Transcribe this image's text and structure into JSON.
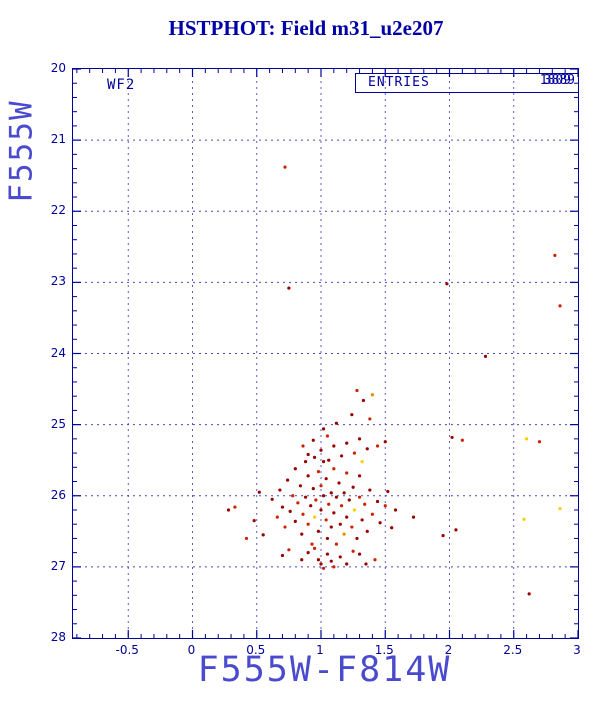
{
  "title": "HSTPHOT: Field m31_u2e207",
  "plot": {
    "detector_label": "WF2",
    "entries": {
      "label": "ENTRIES",
      "value_primary": "3889",
      "value_overlay": "1809"
    },
    "colors": {
      "frame": "#00009b",
      "grid": "#2a2ab8",
      "title": "#0000a8",
      "axis_label": "#4a4ace",
      "tick_label": "#00009b"
    }
  },
  "chart_data": {
    "type": "scatter",
    "title": "HSTPHOT: Field m31_u2e207",
    "xlabel": "F555W-F814W",
    "ylabel": "F555W",
    "xlim": [
      -0.93,
      3.0
    ],
    "ylim": [
      28,
      20
    ],
    "x_ticks": [
      -0.5,
      0,
      0.5,
      1,
      1.5,
      2,
      2.5,
      3
    ],
    "y_ticks": [
      20,
      21,
      22,
      23,
      24,
      25,
      26,
      27,
      28
    ],
    "x_minor_step": 0.1,
    "y_minor_step": 0.2,
    "grid": true,
    "legend": "none",
    "point_palette": [
      "#990000",
      "#cc2200",
      "#ee8800",
      "#ffcc00"
    ],
    "points": [
      [
        0.72,
        21.38,
        1
      ],
      [
        2.82,
        22.62,
        1
      ],
      [
        0.75,
        23.08,
        0
      ],
      [
        1.98,
        23.02,
        0
      ],
      [
        2.86,
        23.33,
        1
      ],
      [
        2.28,
        24.04,
        0
      ],
      [
        2.02,
        25.18,
        0
      ],
      [
        2.1,
        25.22,
        1
      ],
      [
        2.6,
        25.2,
        3
      ],
      [
        2.7,
        25.24,
        1
      ],
      [
        2.86,
        26.18,
        3
      ],
      [
        2.58,
        26.33,
        3
      ],
      [
        2.62,
        27.38,
        0
      ],
      [
        2.05,
        26.48,
        0
      ],
      [
        1.95,
        26.56,
        0
      ],
      [
        1.72,
        26.3,
        0
      ],
      [
        0.28,
        26.2,
        0
      ],
      [
        0.33,
        26.16,
        1
      ],
      [
        0.48,
        26.35,
        0
      ],
      [
        0.52,
        25.95,
        0
      ],
      [
        0.55,
        26.55,
        0
      ],
      [
        0.42,
        26.6,
        1
      ],
      [
        1.28,
        24.52,
        1
      ],
      [
        1.33,
        24.66,
        0
      ],
      [
        1.24,
        24.86,
        0
      ],
      [
        1.38,
        24.92,
        1
      ],
      [
        1.12,
        24.98,
        0
      ],
      [
        1.02,
        25.06,
        0
      ],
      [
        1.4,
        24.58,
        2
      ],
      [
        0.86,
        25.3,
        1
      ],
      [
        0.94,
        25.22,
        0
      ],
      [
        1.0,
        25.36,
        0
      ],
      [
        1.05,
        25.16,
        1
      ],
      [
        1.1,
        25.3,
        0
      ],
      [
        1.16,
        25.44,
        0
      ],
      [
        1.2,
        25.26,
        0
      ],
      [
        1.26,
        25.4,
        1
      ],
      [
        1.3,
        25.2,
        0
      ],
      [
        1.36,
        25.34,
        0
      ],
      [
        0.9,
        25.42,
        0
      ],
      [
        1.44,
        25.3,
        1
      ],
      [
        1.5,
        25.24,
        0
      ],
      [
        1.32,
        25.52,
        3
      ],
      [
        1.06,
        25.5,
        0
      ],
      [
        0.62,
        26.05,
        0
      ],
      [
        0.66,
        26.3,
        1
      ],
      [
        0.68,
        25.92,
        0
      ],
      [
        0.7,
        26.16,
        0
      ],
      [
        0.72,
        26.44,
        1
      ],
      [
        0.74,
        25.78,
        0
      ],
      [
        0.76,
        26.22,
        0
      ],
      [
        0.78,
        26.0,
        1
      ],
      [
        0.8,
        26.36,
        0
      ],
      [
        0.8,
        25.62,
        0
      ],
      [
        0.82,
        26.1,
        1
      ],
      [
        0.84,
        25.86,
        0
      ],
      [
        0.85,
        26.54,
        0
      ],
      [
        0.86,
        26.26,
        1
      ],
      [
        0.88,
        25.52,
        0
      ],
      [
        0.88,
        26.02,
        0
      ],
      [
        0.9,
        26.4,
        1
      ],
      [
        0.9,
        25.72,
        0
      ],
      [
        0.92,
        26.14,
        0
      ],
      [
        0.93,
        26.68,
        1
      ],
      [
        0.94,
        25.9,
        0
      ],
      [
        0.95,
        26.3,
        3
      ],
      [
        0.95,
        25.46,
        0
      ],
      [
        0.96,
        26.06,
        1
      ],
      [
        0.98,
        26.5,
        0
      ],
      [
        0.98,
        25.66,
        1
      ],
      [
        1.0,
        26.2,
        0
      ],
      [
        1.0,
        25.86,
        1
      ],
      [
        1.02,
        26.0,
        0
      ],
      [
        1.02,
        25.52,
        0
      ],
      [
        1.04,
        26.34,
        1
      ],
      [
        1.04,
        25.76,
        0
      ],
      [
        1.05,
        26.6,
        0
      ],
      [
        1.06,
        26.12,
        1
      ],
      [
        1.08,
        25.96,
        0
      ],
      [
        1.08,
        26.44,
        0
      ],
      [
        1.1,
        25.62,
        1
      ],
      [
        1.1,
        26.24,
        0
      ],
      [
        1.12,
        26.02,
        0
      ],
      [
        1.12,
        26.68,
        1
      ],
      [
        1.14,
        25.82,
        0
      ],
      [
        1.15,
        26.4,
        0
      ],
      [
        1.16,
        26.14,
        1
      ],
      [
        1.18,
        25.96,
        0
      ],
      [
        1.18,
        26.54,
        2
      ],
      [
        1.2,
        26.3,
        0
      ],
      [
        1.2,
        25.68,
        1
      ],
      [
        1.22,
        26.06,
        0
      ],
      [
        1.24,
        26.44,
        1
      ],
      [
        1.25,
        25.88,
        0
      ],
      [
        1.26,
        26.2,
        3
      ],
      [
        1.28,
        26.6,
        0
      ],
      [
        1.3,
        26.02,
        1
      ],
      [
        1.3,
        25.72,
        0
      ],
      [
        1.32,
        26.34,
        0
      ],
      [
        1.34,
        26.12,
        1
      ],
      [
        1.36,
        26.5,
        0
      ],
      [
        1.38,
        25.92,
        0
      ],
      [
        1.4,
        26.26,
        1
      ],
      [
        1.44,
        26.08,
        0
      ],
      [
        1.46,
        26.38,
        0
      ],
      [
        1.5,
        26.14,
        1
      ],
      [
        1.52,
        25.94,
        0
      ],
      [
        1.55,
        26.45,
        0
      ],
      [
        1.58,
        26.2,
        0
      ],
      [
        0.7,
        26.84,
        0
      ],
      [
        0.75,
        26.76,
        1
      ],
      [
        0.85,
        26.9,
        0
      ],
      [
        0.9,
        26.8,
        0
      ],
      [
        0.95,
        26.74,
        1
      ],
      [
        0.98,
        26.9,
        0
      ],
      [
        1.0,
        26.96,
        0
      ],
      [
        1.02,
        27.02,
        1
      ],
      [
        1.05,
        26.82,
        0
      ],
      [
        1.08,
        26.92,
        0
      ],
      [
        1.1,
        27.0,
        1
      ],
      [
        1.15,
        26.86,
        0
      ],
      [
        1.2,
        26.96,
        0
      ],
      [
        1.25,
        26.78,
        1
      ],
      [
        1.3,
        26.82,
        0
      ],
      [
        1.35,
        26.96,
        0
      ],
      [
        1.42,
        26.9,
        1
      ]
    ]
  }
}
